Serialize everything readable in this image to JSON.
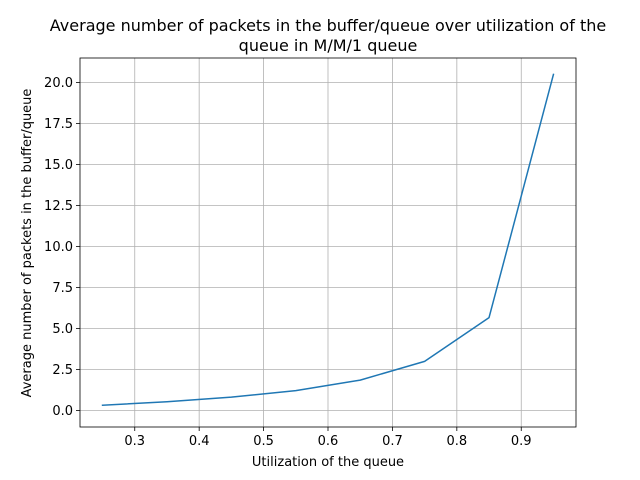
{
  "chart_data": {
    "type": "line",
    "title_line1": "Average number of packets in the buffer/queue over utilization of the",
    "title_line2": "queue in M/M/1 queue",
    "xlabel": "Utilization of the queue",
    "ylabel": "Average number of packets in the buffer/queue",
    "xlim": [
      0.215,
      0.985
    ],
    "ylim": [
      -1.0,
      21.5
    ],
    "x_ticks": [
      0.3,
      0.4,
      0.5,
      0.6,
      0.7,
      0.8,
      0.9
    ],
    "x_tick_labels": [
      "0.3",
      "0.4",
      "0.5",
      "0.6",
      "0.7",
      "0.8",
      "0.9"
    ],
    "y_ticks": [
      0.0,
      2.5,
      5.0,
      7.5,
      10.0,
      12.5,
      15.0,
      17.5,
      20.0
    ],
    "y_tick_labels": [
      "0.0",
      "2.5",
      "5.0",
      "7.5",
      "10.0",
      "12.5",
      "15.0",
      "17.5",
      "20.0"
    ],
    "grid": true,
    "series": [
      {
        "color": "#1f77b4",
        "x": [
          0.25,
          0.35,
          0.45,
          0.55,
          0.65,
          0.75,
          0.85,
          0.95
        ],
        "y": [
          0.33,
          0.54,
          0.82,
          1.22,
          1.86,
          3.0,
          5.67,
          20.5
        ]
      }
    ]
  }
}
